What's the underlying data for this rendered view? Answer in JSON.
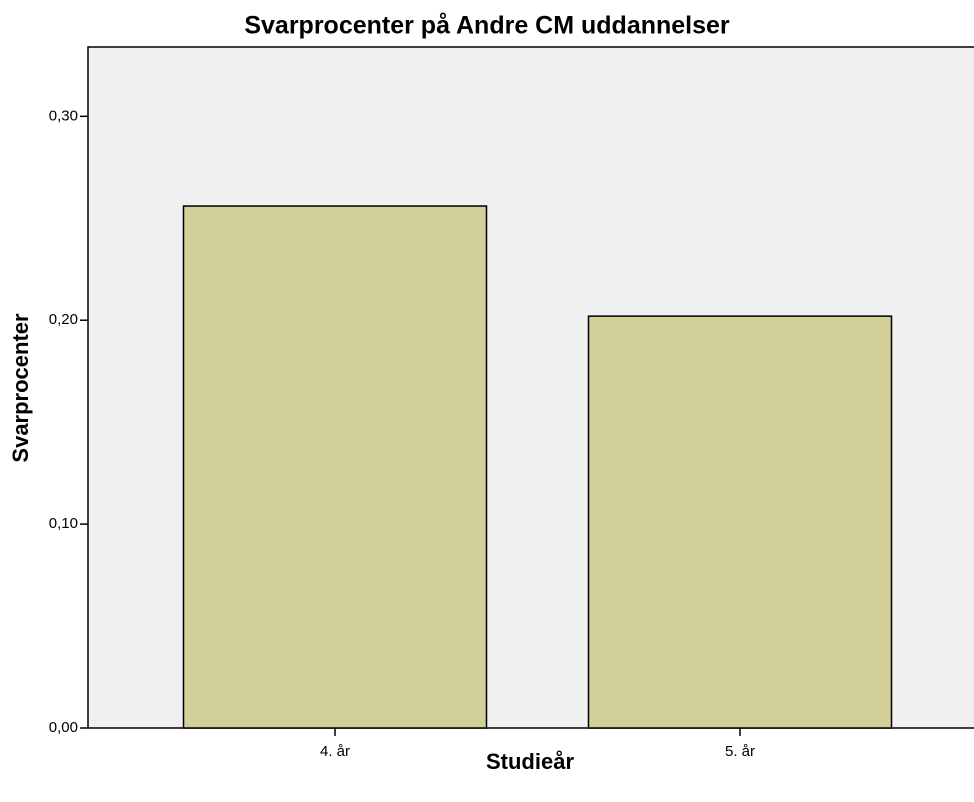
{
  "chart_data": {
    "type": "bar",
    "title": "Svarprocenter på Andre CM uddannelser",
    "x_label": "Studieår",
    "y_label": "Svarprocenter",
    "categories": [
      "4. år",
      "5. år"
    ],
    "values": [
      0.256,
      0.202
    ],
    "color": "#d3cf98",
    "ylim": [
      0,
      0.334
    ],
    "yticks": [
      {
        "value": 0,
        "label": "0,00"
      },
      {
        "value": 0.1,
        "label": "0,10"
      },
      {
        "value": 0.2,
        "label": "0,20"
      },
      {
        "value": 0.3,
        "label": "0,30"
      }
    ],
    "grid": false
  }
}
